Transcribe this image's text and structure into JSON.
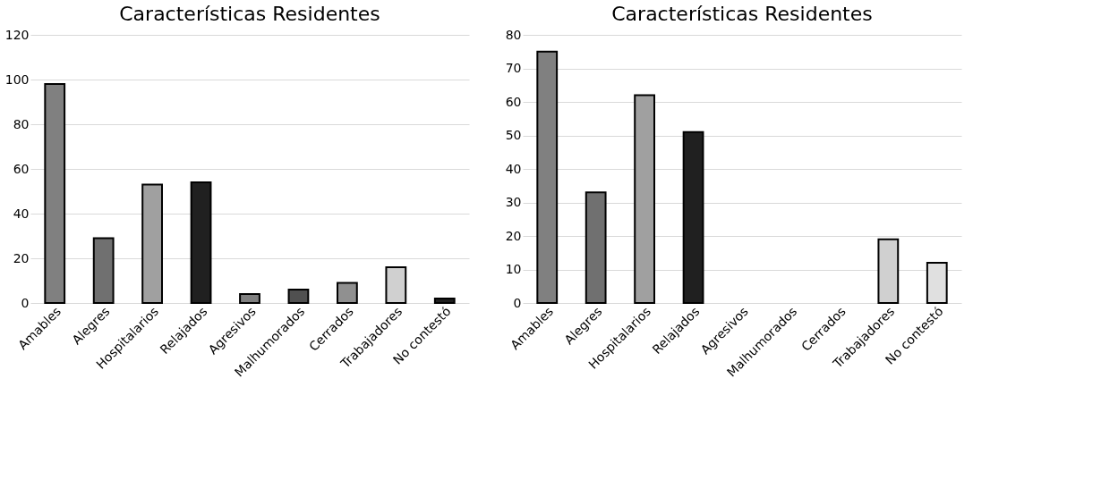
{
  "chart_data": [
    {
      "type": "bar",
      "title": "Características Residentes",
      "categories": [
        "Amables",
        "Alegres",
        "Hospitalarios",
        "Relajados",
        "Agresivos",
        "Malhumorados",
        "Cerrados",
        "Trabajadores",
        "No contestó"
      ],
      "values": [
        98,
        29,
        53,
        54,
        4,
        6,
        9,
        16,
        2
      ],
      "colors": [
        "#808080",
        "#707070",
        "#a0a0a0",
        "#202020",
        "#808080",
        "#505050",
        "#909090",
        "#d0d0d0",
        "#202020"
      ],
      "ylim": [
        0,
        120
      ],
      "yticks": [
        0,
        20,
        40,
        60,
        80,
        100,
        120
      ],
      "grid": "y",
      "legend": false
    },
    {
      "type": "bar",
      "title": "Características Residentes",
      "categories": [
        "Amables",
        "Alegres",
        "Hospitalarios",
        "Relajados",
        "Agresivos",
        "Malhumorados",
        "Cerrados",
        "Trabajadores",
        "No contestó"
      ],
      "values": [
        75,
        33,
        62,
        51,
        null,
        null,
        null,
        19,
        12
      ],
      "colors": [
        "#808080",
        "#707070",
        "#a0a0a0",
        "#202020",
        null,
        null,
        null,
        "#d0d0d0",
        "#e0e0e0"
      ],
      "ylim": [
        0,
        80
      ],
      "yticks": [
        0,
        10,
        20,
        30,
        40,
        50,
        60,
        70,
        80
      ],
      "grid": "y",
      "legend": false
    }
  ]
}
